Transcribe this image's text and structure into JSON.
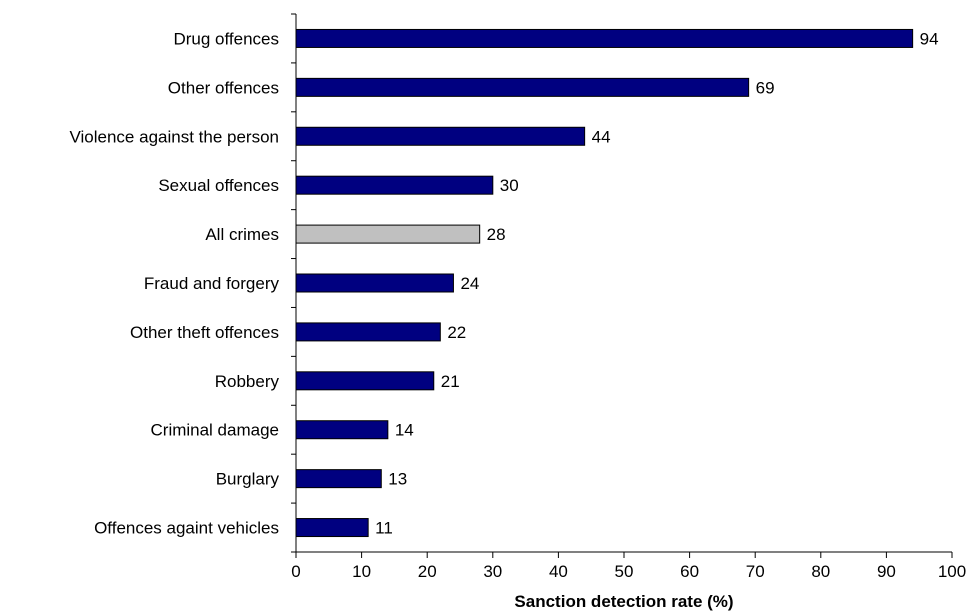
{
  "chart_data": {
    "type": "bar",
    "orientation": "horizontal",
    "categories": [
      "Drug offences",
      "Other offences",
      "Violence against the person",
      "Sexual offences",
      "All crimes",
      "Fraud and forgery",
      "Other theft offences",
      "Robbery",
      "Criminal damage",
      "Burglary",
      "Offences againt vehicles"
    ],
    "values": [
      94,
      69,
      44,
      30,
      28,
      24,
      22,
      21,
      14,
      13,
      11
    ],
    "value_labels": [
      "94",
      "69",
      "44",
      "30",
      "28",
      "24",
      "22",
      "21",
      "14",
      "13",
      "11"
    ],
    "highlight_category": "All crimes",
    "xlabel": "Sanction detection rate (%)",
    "ylabel": "",
    "title": "",
    "xlim": [
      0,
      100
    ],
    "xticks": [
      0,
      10,
      20,
      30,
      40,
      50,
      60,
      70,
      80,
      90,
      100
    ],
    "xtick_labels": [
      "0",
      "10",
      "20",
      "30",
      "40",
      "50",
      "60",
      "70",
      "80",
      "90",
      "100"
    ],
    "grid": false,
    "legend": "none",
    "colors": {
      "bar": "#000080",
      "highlight": "#c0c0c0",
      "outline": "#000000"
    }
  }
}
